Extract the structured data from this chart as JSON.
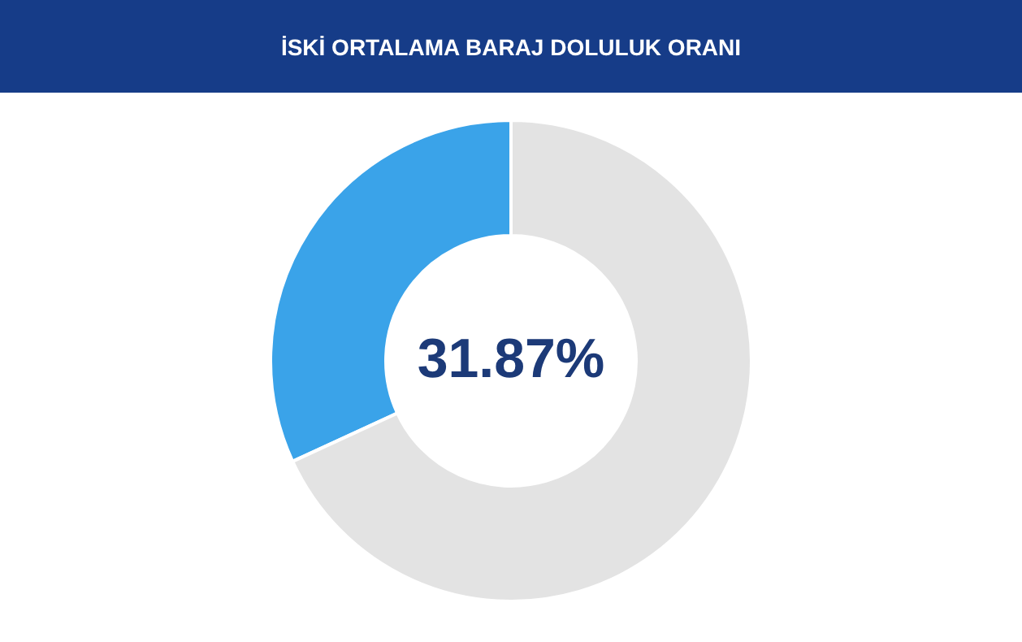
{
  "chart_data": {
    "type": "donut",
    "title": "İSKİ ORTALAMA BARAJ DOLULUK ORANI",
    "categories": [
      null,
      null
    ],
    "values": [
      31.87,
      68.13
    ],
    "colors": [
      "#3aa3e9",
      "#e3e3e3"
    ],
    "annotations": [
      "31.87%"
    ]
  }
}
